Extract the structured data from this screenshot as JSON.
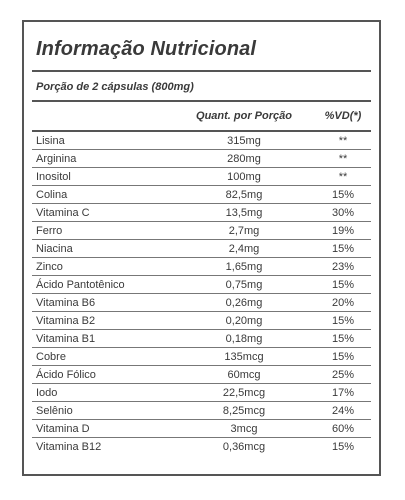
{
  "label": {
    "title": "Informação Nutricional",
    "portion": "Porção de 2 cápsulas (800mg)",
    "headers": {
      "quantity": "Quant. por Porção",
      "daily_value": "%VD(*)"
    },
    "rows": [
      {
        "name": "Lisina",
        "amount": "315mg",
        "vd": "**"
      },
      {
        "name": "Arginina",
        "amount": "280mg",
        "vd": "**"
      },
      {
        "name": "Inositol",
        "amount": "100mg",
        "vd": "**"
      },
      {
        "name": "Colina",
        "amount": "82,5mg",
        "vd": "15%"
      },
      {
        "name": "Vitamina C",
        "amount": "13,5mg",
        "vd": "30%"
      },
      {
        "name": "Ferro",
        "amount": "2,7mg",
        "vd": "19%"
      },
      {
        "name": "Niacina",
        "amount": "2,4mg",
        "vd": "15%"
      },
      {
        "name": "Zinco",
        "amount": "1,65mg",
        "vd": "23%"
      },
      {
        "name": "Ácido Pantotênico",
        "amount": "0,75mg",
        "vd": "15%"
      },
      {
        "name": "Vitamina B6",
        "amount": "0,26mg",
        "vd": "20%"
      },
      {
        "name": "Vitamina B2",
        "amount": "0,20mg",
        "vd": "15%"
      },
      {
        "name": "Vitamina B1",
        "amount": "0,18mg",
        "vd": "15%"
      },
      {
        "name": "Cobre",
        "amount": "135mcg",
        "vd": "15%"
      },
      {
        "name": "Ácido Fólico",
        "amount": "60mcg",
        "vd": "25%"
      },
      {
        "name": "Iodo",
        "amount": "22,5mcg",
        "vd": "17%"
      },
      {
        "name": "Selênio",
        "amount": "8,25mcg",
        "vd": "24%"
      },
      {
        "name": "Vitamina D",
        "amount": "3mcg",
        "vd": "60%"
      },
      {
        "name": "Vitamina B12",
        "amount": "0,36mcg",
        "vd": "15%"
      }
    ]
  }
}
